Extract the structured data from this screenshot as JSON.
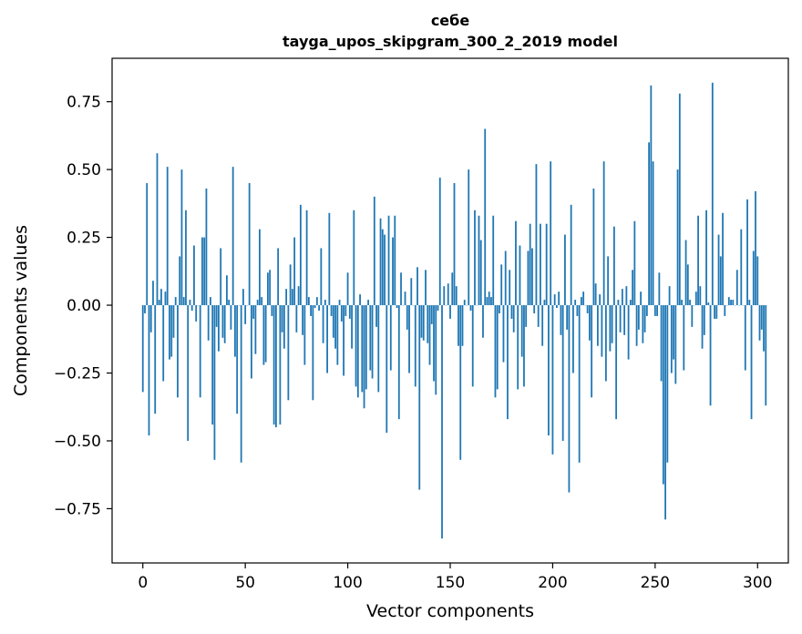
{
  "chart_data": {
    "type": "bar",
    "title": "себе",
    "subtitle": "tayga_upos_skipgram_300_2_2019 model",
    "xlabel": "Vector components",
    "ylabel": "Components values",
    "xlim": [
      -15,
      315
    ],
    "ylim": [
      -0.95,
      0.91
    ],
    "xticks": [
      0,
      50,
      100,
      150,
      200,
      250,
      300
    ],
    "xtick_labels": [
      "0",
      "50",
      "100",
      "150",
      "200",
      "250",
      "300"
    ],
    "yticks": [
      -0.75,
      -0.5,
      -0.25,
      0.0,
      0.25,
      0.5,
      0.75
    ],
    "ytick_labels": [
      "−0.75",
      "−0.50",
      "−0.25",
      "0.00",
      "0.25",
      "0.50",
      "0.75"
    ],
    "grid": false,
    "legend": "none",
    "bar_color": "#1f77b4",
    "values": [
      -0.32,
      -0.03,
      0.45,
      -0.48,
      -0.1,
      0.09,
      -0.4,
      0.56,
      0.02,
      0.06,
      -0.28,
      0.05,
      0.51,
      -0.2,
      -0.19,
      -0.12,
      0.03,
      -0.34,
      0.18,
      0.5,
      0.03,
      0.35,
      -0.5,
      0.02,
      -0.02,
      0.22,
      -0.06,
      0.0,
      -0.34,
      0.25,
      0.25,
      0.43,
      -0.13,
      0.03,
      -0.44,
      -0.57,
      -0.08,
      -0.17,
      0.21,
      -0.12,
      -0.14,
      0.11,
      0.02,
      -0.09,
      0.51,
      -0.19,
      -0.4,
      0.0,
      -0.58,
      0.06,
      -0.07,
      0.0,
      0.45,
      -0.27,
      -0.05,
      -0.18,
      0.02,
      0.28,
      0.03,
      -0.22,
      -0.21,
      0.12,
      0.13,
      -0.04,
      -0.44,
      -0.45,
      0.21,
      -0.44,
      -0.1,
      -0.16,
      0.06,
      -0.35,
      0.15,
      0.06,
      0.25,
      -0.1,
      0.07,
      0.37,
      -0.11,
      -0.22,
      0.35,
      0.03,
      -0.04,
      -0.35,
      -0.01,
      0.03,
      -0.02,
      0.21,
      -0.14,
      0.02,
      -0.25,
      0.34,
      -0.04,
      -0.12,
      -0.16,
      -0.22,
      0.02,
      -0.06,
      -0.26,
      -0.04,
      0.12,
      -0.05,
      -0.16,
      0.35,
      -0.3,
      -0.34,
      0.04,
      -0.32,
      -0.38,
      -0.31,
      0.02,
      -0.24,
      -0.27,
      0.4,
      -0.08,
      -0.32,
      0.32,
      0.28,
      0.26,
      -0.47,
      0.33,
      -0.24,
      0.25,
      0.33,
      -0.01,
      -0.42,
      0.12,
      0.0,
      0.05,
      -0.09,
      -0.25,
      0.1,
      0.0,
      -0.3,
      0.14,
      -0.68,
      -0.12,
      -0.13,
      0.13,
      -0.14,
      -0.22,
      -0.07,
      -0.28,
      -0.33,
      -0.02,
      0.47,
      -0.86,
      0.07,
      0.0,
      0.08,
      -0.05,
      0.12,
      0.45,
      0.07,
      -0.15,
      -0.57,
      -0.15,
      0.02,
      0.0,
      0.5,
      -0.02,
      -0.3,
      0.35,
      0.0,
      0.33,
      0.24,
      -0.12,
      0.65,
      0.03,
      0.05,
      0.03,
      0.33,
      -0.34,
      -0.31,
      -0.03,
      0.15,
      -0.21,
      0.2,
      -0.42,
      0.13,
      -0.05,
      -0.1,
      0.31,
      -0.31,
      0.22,
      -0.19,
      -0.3,
      -0.08,
      0.2,
      0.3,
      0.21,
      -0.03,
      0.52,
      -0.08,
      0.3,
      -0.15,
      0.02,
      0.3,
      -0.48,
      0.53,
      -0.55,
      0.04,
      -0.01,
      0.05,
      -0.11,
      -0.5,
      0.26,
      -0.09,
      -0.69,
      0.37,
      -0.25,
      0.02,
      -0.04,
      -0.58,
      0.03,
      0.05,
      0.0,
      -0.03,
      -0.13,
      -0.34,
      0.43,
      0.08,
      -0.15,
      0.04,
      -0.19,
      0.53,
      -0.28,
      0.18,
      -0.17,
      -0.14,
      0.29,
      -0.42,
      0.02,
      -0.1,
      0.06,
      -0.11,
      0.07,
      -0.2,
      0.02,
      0.13,
      0.31,
      -0.15,
      -0.09,
      0.05,
      -0.14,
      -0.1,
      -0.04,
      0.6,
      0.81,
      0.53,
      -0.04,
      -0.04,
      0.12,
      -0.28,
      -0.66,
      -0.79,
      -0.58,
      0.07,
      -0.25,
      -0.2,
      -0.29,
      0.5,
      0.78,
      0.02,
      -0.24,
      0.24,
      0.15,
      0.02,
      -0.08,
      0.0,
      0.05,
      0.33,
      0.07,
      -0.16,
      -0.11,
      0.35,
      0.01,
      -0.37,
      0.82,
      -0.05,
      -0.05,
      0.26,
      0.18,
      0.34,
      -0.04,
      0.0,
      0.03,
      0.02,
      0.02,
      0.0,
      0.13,
      0.0,
      0.28,
      0.0,
      -0.24,
      0.39,
      0.02,
      -0.42,
      0.2,
      0.42,
      0.18,
      -0.13,
      -0.09,
      -0.17,
      -0.37
    ]
  }
}
